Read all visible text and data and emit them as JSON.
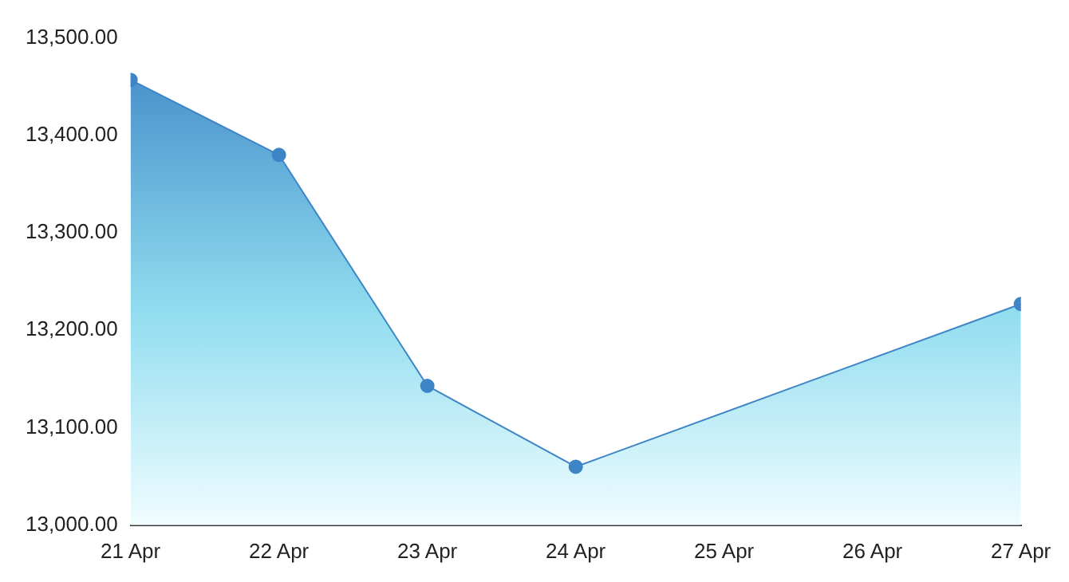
{
  "chart_data": {
    "type": "area",
    "x": [
      "--04-21",
      "--04-22",
      "--04-23",
      "--04-24",
      "--04-27"
    ],
    "series": [
      {
        "color": "#3d85c6",
        "values": [
          13457,
          13380,
          13143,
          13060,
          13227
        ]
      }
    ],
    "xlim": [
      "--04-21",
      "--04-27"
    ],
    "xticks": [
      {
        "value": "--04-21",
        "label": "21 Apr"
      },
      {
        "value": "--04-22",
        "label": "22 Apr"
      },
      {
        "value": "--04-23",
        "label": "23 Apr"
      },
      {
        "value": "--04-24",
        "label": "24 Apr"
      },
      {
        "value": "--04-25",
        "label": "25 Apr"
      },
      {
        "value": "--04-26",
        "label": "26 Apr"
      },
      {
        "value": "--04-27",
        "label": "27 Apr"
      }
    ],
    "ylim": [
      13000,
      13500
    ],
    "yticks": [
      {
        "value": 13000,
        "label": "13,000.00"
      },
      {
        "value": 13100,
        "label": "13,100.00"
      },
      {
        "value": 13200,
        "label": "13,200.00"
      },
      {
        "value": 13300,
        "label": "13,300.00"
      },
      {
        "value": 13400,
        "label": "13,400.00"
      },
      {
        "value": 13500,
        "label": "13,500.00"
      }
    ],
    "grid": false,
    "legend": false,
    "marker": "circle",
    "line_style": "solid"
  }
}
